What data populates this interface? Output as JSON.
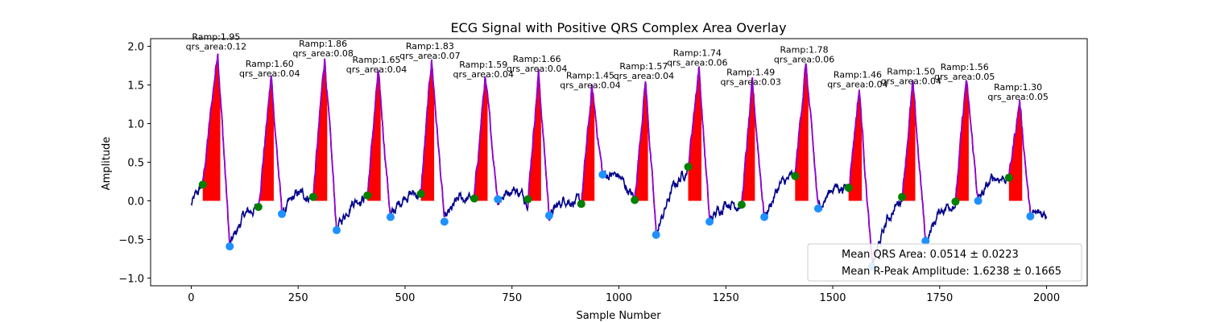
{
  "chart_data": {
    "type": "line",
    "title": "ECG Signal with Positive QRS Complex Area Overlay",
    "xlabel": "Sample Number",
    "ylabel": "Amplitude",
    "xlim": [
      -95,
      2095
    ],
    "ylim": [
      -1.1,
      2.1
    ],
    "x_ticks": [
      0,
      250,
      500,
      750,
      1000,
      1250,
      1500,
      1750,
      2000
    ],
    "y_ticks": [
      -1.0,
      -0.5,
      0.0,
      0.5,
      1.0,
      1.5,
      2.0
    ],
    "y_tick_labels": [
      "−1.0",
      "−0.5",
      "0.0",
      "0.5",
      "1.0",
      "1.5",
      "2.0"
    ],
    "grid": false,
    "legend_placement": "lower right",
    "colors": {
      "signal": "#00008b",
      "qrs_segment": "#9400d3",
      "qrs_fill": "#ff0000",
      "q_onset_marker": "#008000",
      "s_offset_marker": "#1e90ff"
    },
    "r_peaks": [
      {
        "x": 62,
        "amp": 1.95,
        "label_ramp": "Ramp:1.95",
        "label_area": "qrs_area:0.12"
      },
      {
        "x": 187,
        "amp": 1.6,
        "label_ramp": "Ramp:1.60",
        "label_area": "qrs_area:0.04"
      },
      {
        "x": 312,
        "amp": 1.86,
        "label_ramp": "Ramp:1.86",
        "label_area": "qrs_area:0.08"
      },
      {
        "x": 437,
        "amp": 1.65,
        "label_ramp": "Ramp:1.65",
        "label_area": "qrs_area:0.04"
      },
      {
        "x": 562,
        "amp": 1.83,
        "label_ramp": "Ramp:1.83",
        "label_area": "qrs_area:0.07"
      },
      {
        "x": 687,
        "amp": 1.59,
        "label_ramp": "Ramp:1.59",
        "label_area": "qrs_area:0.04"
      },
      {
        "x": 812,
        "amp": 1.66,
        "label_ramp": "Ramp:1.66",
        "label_area": "qrs_area:0.04"
      },
      {
        "x": 937,
        "amp": 1.45,
        "label_ramp": "Ramp:1.45",
        "label_area": "qrs_area:0.04"
      },
      {
        "x": 1062,
        "amp": 1.57,
        "label_ramp": "Ramp:1.57",
        "label_area": "qrs_area:0.04"
      },
      {
        "x": 1187,
        "amp": 1.74,
        "label_ramp": "Ramp:1.74",
        "label_area": "qrs_area:0.06"
      },
      {
        "x": 1312,
        "amp": 1.49,
        "label_ramp": "Ramp:1.49",
        "label_area": "qrs_area:0.03"
      },
      {
        "x": 1437,
        "amp": 1.78,
        "label_ramp": "Ramp:1.78",
        "label_area": "qrs_area:0.06"
      },
      {
        "x": 1562,
        "amp": 1.46,
        "label_ramp": "Ramp:1.46",
        "label_area": "qrs_area:0.04"
      },
      {
        "x": 1687,
        "amp": 1.5,
        "label_ramp": "Ramp:1.50",
        "label_area": "qrs_area:0.04"
      },
      {
        "x": 1812,
        "amp": 1.56,
        "label_ramp": "Ramp:1.56",
        "label_area": "qrs_area:0.05"
      },
      {
        "x": 1937,
        "amp": 1.3,
        "label_ramp": "Ramp:1.30",
        "label_area": "qrs_area:0.05"
      }
    ],
    "q_onset_points": [
      {
        "x": 27,
        "y": 0.21
      },
      {
        "x": 157,
        "y": -0.08
      },
      {
        "x": 285,
        "y": 0.05
      },
      {
        "x": 412,
        "y": 0.07
      },
      {
        "x": 537,
        "y": 0.09
      },
      {
        "x": 662,
        "y": 0.03
      },
      {
        "x": 787,
        "y": 0.02
      },
      {
        "x": 912,
        "y": -0.04
      },
      {
        "x": 1037,
        "y": 0.01
      },
      {
        "x": 1162,
        "y": 0.44
      },
      {
        "x": 1287,
        "y": -0.05
      },
      {
        "x": 1412,
        "y": 0.32
      },
      {
        "x": 1537,
        "y": 0.17
      },
      {
        "x": 1662,
        "y": 0.05
      },
      {
        "x": 1787,
        "y": -0.01
      },
      {
        "x": 1912,
        "y": 0.3
      }
    ],
    "s_offset_points": [
      {
        "x": 90,
        "y": -0.59
      },
      {
        "x": 212,
        "y": -0.17
      },
      {
        "x": 340,
        "y": -0.38
      },
      {
        "x": 466,
        "y": -0.21
      },
      {
        "x": 592,
        "y": -0.27
      },
      {
        "x": 717,
        "y": 0.02
      },
      {
        "x": 837,
        "y": -0.19
      },
      {
        "x": 962,
        "y": 0.34
      },
      {
        "x": 1087,
        "y": -0.44
      },
      {
        "x": 1212,
        "y": -0.27
      },
      {
        "x": 1340,
        "y": -0.21
      },
      {
        "x": 1466,
        "y": -0.1
      },
      {
        "x": 1592,
        "y": -0.85
      },
      {
        "x": 1717,
        "y": -0.52
      },
      {
        "x": 1840,
        "y": 0.0
      },
      {
        "x": 1962,
        "y": -0.2
      }
    ],
    "legend": [
      {
        "text": "Mean QRS Area: 0.0514 ± 0.0223"
      },
      {
        "text": "Mean R-Peak Amplitude: 1.6238 ± 0.1665"
      }
    ]
  }
}
